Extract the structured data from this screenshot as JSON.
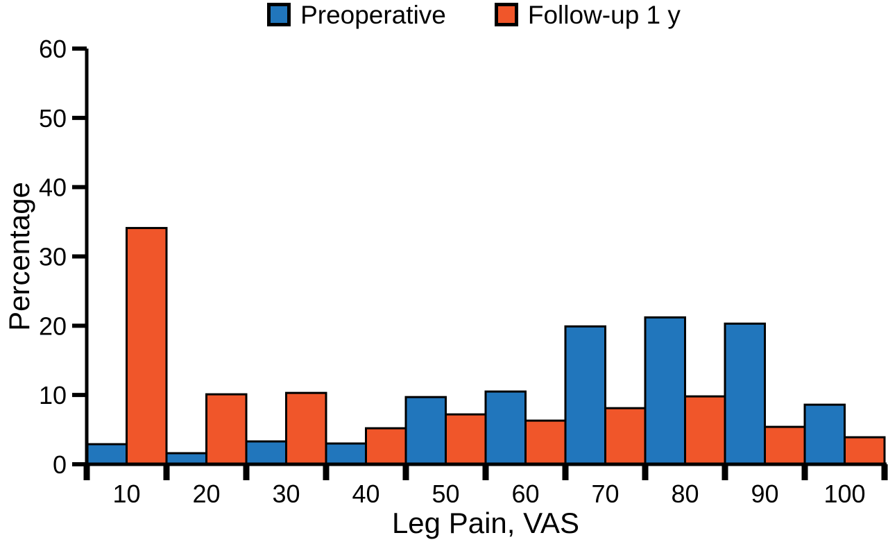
{
  "chart_data": {
    "type": "bar",
    "title": "",
    "xlabel": "Leg Pain, VAS",
    "ylabel": "Percentage",
    "categories": [
      "10",
      "20",
      "30",
      "40",
      "50",
      "60",
      "70",
      "80",
      "90",
      "100"
    ],
    "series": [
      {
        "name": "Preoperative",
        "color": "#2176BC",
        "values": [
          2.9,
          1.6,
          3.3,
          3.0,
          9.7,
          10.5,
          19.9,
          21.2,
          20.3,
          8.6
        ]
      },
      {
        "name": "Follow-up 1 y",
        "color": "#F0562A",
        "values": [
          34.1,
          10.1,
          10.3,
          5.2,
          7.2,
          6.3,
          8.1,
          9.8,
          5.4,
          3.9
        ]
      }
    ],
    "ylim": [
      0,
      60
    ],
    "yticks": [
      0,
      10,
      20,
      30,
      40,
      50,
      60
    ],
    "grid": false,
    "legend_position": "top-center",
    "axis_color": "#000000",
    "bar_border_color": "#000000"
  }
}
